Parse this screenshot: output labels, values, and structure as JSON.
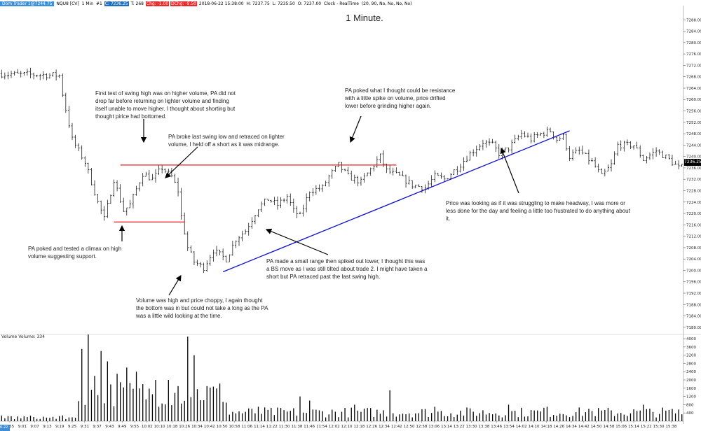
{
  "toolbar": {
    "instrument_btn": "Dom Trader 1@7244.75",
    "symbol": "NQU8 [CV]",
    "timeframe": "1 Min",
    "count": "#1",
    "close": "C: 7236.25",
    "ticks": "T: 268",
    "chg": "Chg: -1.00",
    "dchg": "DChg: -9.50",
    "datetime": "2018-06-22 15:38:00",
    "high": "H: 7237.75",
    "low": "L: 7235.50",
    "open": "O: 7237.00",
    "clock": "Clock - RealTime",
    "params": "(20, 90, No, No, No, No)"
  },
  "volume_label": "Volume  Volume: 334",
  "last_price_tag": "7236.25",
  "corner_date": "6-22",
  "annotations": {
    "n1": "First test of swing high was on higher volume, PA did not drop far before returning on lighter volume and finding itself unable to move higher.  I thought about shorting but thought pirice had bottomed.",
    "n2": "PA broke last swing low and retraced on lighter volume, I held off a short as it was midrange.",
    "n3": "PA poked what I thought could be resistance with a little spike on volume, price drifted lower before grinding higher again.",
    "n4": "PA poked and tested a climax on high volume suggesting support.",
    "n5": "PA made a small range then spiked out lower, I thought this was a BS move as I was still tilted about trade 2.  I might have taken a short but PA retraced past the last swing high.",
    "n6": "Volume was high and price choppy, I again thought the bottom was in but could not take a long as the PA was a little wild looking at the time.",
    "n7": "Price was looking as if it was struggling to make headway, I was more or less done for the day and feeling a little too frustrated to do anything about it."
  },
  "colors": {
    "bars": "#000000",
    "range_lines": "#e02020",
    "trendline": "#1010d0",
    "grid": "#dcdcdc"
  },
  "chart_data": [
    {
      "type": "ohlc",
      "title": "1 Minute.",
      "x_labels": [
        "8:55",
        "9:01",
        "9:07",
        "9:13",
        "9:19",
        "9:25",
        "9:31",
        "9:37",
        "9:43",
        "9:49",
        "9:55",
        "10:02",
        "10:10",
        "10:18",
        "10:26",
        "10:34",
        "10:42",
        "10:50",
        "10:58",
        "11:06",
        "11:14",
        "11:22",
        "11:30",
        "11:38",
        "11:46",
        "11:54",
        "12:02",
        "12:10",
        "12:18",
        "12:26",
        "12:34",
        "12:42",
        "12:50",
        "12:58",
        "13:06",
        "13:14",
        "13:22",
        "13:30",
        "13:38",
        "13:46",
        "13:54",
        "14:02",
        "14:10",
        "14:18",
        "14:26",
        "14:34",
        "14:42",
        "14:50",
        "14:58",
        "15:06",
        "15:14",
        "15:22",
        "15:30",
        "15:38"
      ],
      "y_ticks": [
        7180,
        7184,
        7188,
        7192,
        7196,
        7200,
        7204,
        7208,
        7212,
        7216,
        7220,
        7224,
        7228,
        7232,
        7236,
        7240,
        7244,
        7248,
        7252,
        7256,
        7260,
        7264,
        7268,
        7272,
        7276,
        7280,
        7284,
        7288
      ],
      "ylim": [
        7178,
        7292
      ],
      "path": [
        [
          0,
          7269
        ],
        [
          18,
          7268.5
        ],
        [
          19,
          7262
        ],
        [
          22,
          7246
        ],
        [
          26,
          7238
        ],
        [
          30,
          7224
        ],
        [
          32,
          7218
        ],
        [
          35,
          7232
        ],
        [
          38,
          7221
        ],
        [
          40,
          7223
        ],
        [
          44,
          7234
        ],
        [
          47,
          7232
        ],
        [
          50,
          7236
        ],
        [
          53,
          7233
        ],
        [
          55,
          7228
        ],
        [
          56,
          7219
        ],
        [
          58,
          7208
        ],
        [
          60,
          7203
        ],
        [
          63,
          7201
        ],
        [
          66,
          7207
        ],
        [
          70,
          7204
        ],
        [
          73,
          7211
        ],
        [
          76,
          7214
        ],
        [
          80,
          7222
        ],
        [
          83,
          7225
        ],
        [
          86,
          7223
        ],
        [
          89,
          7226
        ],
        [
          91,
          7221
        ],
        [
          93,
          7219
        ],
        [
          96,
          7228
        ],
        [
          100,
          7229
        ],
        [
          102,
          7233
        ],
        [
          105,
          7237
        ],
        [
          108,
          7233
        ],
        [
          112,
          7231
        ],
        [
          116,
          7237
        ],
        [
          118,
          7240
        ],
        [
          120,
          7235
        ],
        [
          124,
          7233
        ],
        [
          128,
          7230
        ],
        [
          132,
          7229
        ],
        [
          135,
          7233
        ],
        [
          138,
          7232
        ],
        [
          142,
          7236
        ],
        [
          146,
          7241
        ],
        [
          150,
          7245
        ],
        [
          153,
          7244
        ],
        [
          155,
          7241
        ],
        [
          158,
          7243
        ],
        [
          162,
          7248
        ],
        [
          165,
          7246
        ],
        [
          168,
          7248
        ],
        [
          171,
          7249
        ],
        [
          173,
          7246
        ],
        [
          175,
          7247
        ],
        [
          177,
          7240
        ],
        [
          180,
          7242
        ],
        [
          184,
          7238
        ],
        [
          187,
          7233
        ],
        [
          190,
          7237
        ],
        [
          192,
          7244
        ],
        [
          197,
          7244
        ],
        [
          200,
          7239
        ],
        [
          204,
          7242
        ],
        [
          208,
          7239
        ],
        [
          211,
          7236
        ],
        [
          212,
          7236.25
        ]
      ],
      "trendline": [
        [
          69,
          7199.5
        ],
        [
          177,
          7249
        ]
      ],
      "range_lines": [
        [
          [
            37,
            7237
          ],
          [
            123,
            7237
          ]
        ],
        [
          [
            35,
            7217
          ],
          [
            57,
            7217
          ]
        ]
      ]
    },
    {
      "type": "bar",
      "title": "Volume",
      "ylim": [
        0,
        4000
      ],
      "y_ticks": [
        400,
        800,
        1200,
        1600,
        2000,
        2400,
        2800,
        3200,
        3600,
        4000
      ],
      "last_value": 334,
      "spikes": [
        [
          25,
          3500
        ],
        [
          27,
          4200
        ],
        [
          29,
          2200
        ],
        [
          31,
          3400
        ],
        [
          33,
          2900
        ],
        [
          36,
          2300
        ],
        [
          39,
          2600
        ],
        [
          42,
          2400
        ],
        [
          48,
          2000
        ],
        [
          52,
          2000
        ],
        [
          55,
          1700
        ],
        [
          58,
          4100
        ],
        [
          60,
          3200
        ],
        [
          64,
          1700
        ],
        [
          70,
          900
        ],
        [
          80,
          700
        ],
        [
          93,
          1200
        ],
        [
          96,
          1000
        ],
        [
          110,
          800
        ],
        [
          121,
          1500
        ],
        [
          135,
          700
        ],
        [
          158,
          800
        ],
        [
          170,
          700
        ],
        [
          183,
          600
        ],
        [
          200,
          800
        ],
        [
          212,
          334
        ]
      ]
    }
  ]
}
